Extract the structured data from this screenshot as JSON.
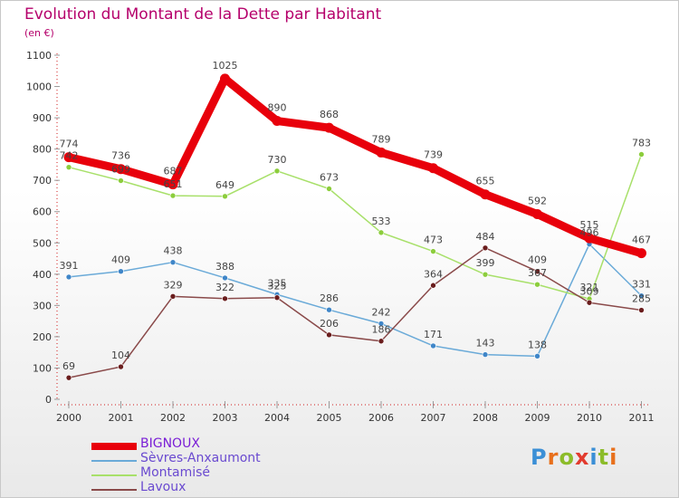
{
  "title": "Evolution du Montant de la Dette par Habitant",
  "subtitle": "(en €)",
  "brand": {
    "text": "Proxiti",
    "letter_colors": [
      "#3b8fd6",
      "#e8701c",
      "#8cbc2a",
      "#e23b2e",
      "#3b8fd6",
      "#8cbc2a",
      "#e8701c"
    ]
  },
  "chart_data": {
    "type": "line",
    "title": "Evolution du Montant de la Dette par Habitant",
    "subtitle": "(en €)",
    "xlabel": "",
    "ylabel": "",
    "x": [
      "2000",
      "2001",
      "2002",
      "2003",
      "2004",
      "2005",
      "2006",
      "2007",
      "2008",
      "2009",
      "2010",
      "2011"
    ],
    "ylim": [
      0,
      1100
    ],
    "yticks": [
      "0",
      "100",
      "200",
      "300",
      "400",
      "500",
      "600",
      "700",
      "800",
      "900",
      "1000",
      "1100"
    ],
    "grid": false,
    "legend_position": "bottom-left",
    "series": [
      {
        "name": "BIGNOUX",
        "color": "#e8000b",
        "emphasis": true,
        "values": [
          774,
          736,
          687,
          1025,
          890,
          868,
          789,
          739,
          655,
          592,
          515,
          467
        ],
        "labels": [
          "774",
          "736",
          "687",
          "1025",
          "890",
          "868",
          "789",
          "739",
          "655",
          "592",
          "515",
          "467"
        ]
      },
      {
        "name": "Sèvres-Anxaumont",
        "color": "#6aaad8",
        "marker": "#3f86c8",
        "values": [
          391,
          409,
          438,
          388,
          335,
          286,
          242,
          171,
          143,
          138,
          496,
          331
        ],
        "labels": [
          "391",
          "409",
          "438",
          "388",
          "335",
          "286",
          "242",
          "171",
          "143",
          "138",
          "496",
          "331"
        ]
      },
      {
        "name": "Montamisé",
        "color": "#a8e06a",
        "marker": "#8ccd3c",
        "values": [
          742,
          699,
          651,
          649,
          730,
          673,
          533,
          473,
          399,
          367,
          321,
          783
        ],
        "labels": [
          "742",
          "699",
          "651",
          "649",
          "730",
          "673",
          "533",
          "473",
          "399",
          "367",
          "321",
          "783"
        ]
      },
      {
        "name": "Lavoux",
        "color": "#8a4a4a",
        "marker": "#6a1d1d",
        "values": [
          69,
          104,
          329,
          322,
          325,
          206,
          186,
          364,
          484,
          409,
          309,
          285
        ],
        "labels": [
          "69",
          "104",
          "329",
          "322",
          "325",
          "206",
          "186",
          "364",
          "484",
          "409",
          "309",
          "285"
        ]
      }
    ]
  }
}
